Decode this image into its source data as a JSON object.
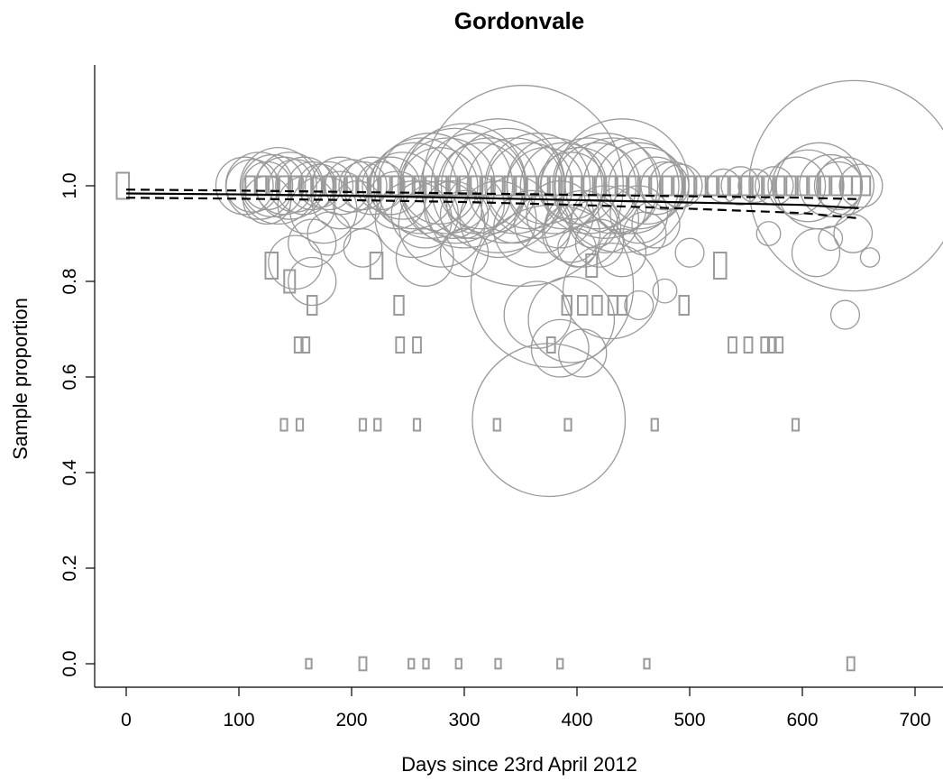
{
  "chart_data": {
    "type": "scatter",
    "title": "Gordonvale",
    "xlabel": "Days since 23rd April 2012",
    "ylabel": "Sample proportion",
    "xlim": [
      -15,
      720
    ],
    "ylim": [
      -0.05,
      1.25
    ],
    "x_ticks": [
      0,
      100,
      200,
      300,
      400,
      500,
      600,
      700
    ],
    "x_tick_labels": [
      "0",
      "100",
      "200",
      "300",
      "400",
      "500",
      "600",
      "700"
    ],
    "y_ticks": [
      0,
      0.2,
      0.4,
      0.6,
      0.8,
      1.0
    ],
    "y_tick_labels": [
      "0.0",
      "0.2",
      "0.4",
      "0.6",
      "0.8",
      "1.0"
    ],
    "grid": false,
    "legend": "none",
    "colors": {
      "points": "#9a9a9a",
      "trend": "#000000"
    },
    "bubbles": [
      {
        "x": 105,
        "y": 1.0,
        "r": 0.06
      },
      {
        "x": 112,
        "y": 1.0,
        "r": 0.055
      },
      {
        "x": 118,
        "y": 1.0,
        "r": 0.07
      },
      {
        "x": 125,
        "y": 1.0,
        "r": 0.05
      },
      {
        "x": 130,
        "y": 1.0,
        "r": 0.065
      },
      {
        "x": 135,
        "y": 1.0,
        "r": 0.08
      },
      {
        "x": 140,
        "y": 1.0,
        "r": 0.06
      },
      {
        "x": 145,
        "y": 1.0,
        "r": 0.07
      },
      {
        "x": 150,
        "y": 1.0,
        "r": 0.055
      },
      {
        "x": 158,
        "y": 1.0,
        "r": 0.06
      },
      {
        "x": 165,
        "y": 1.0,
        "r": 0.05
      },
      {
        "x": 172,
        "y": 1.0,
        "r": 0.045
      },
      {
        "x": 180,
        "y": 1.0,
        "r": 0.05
      },
      {
        "x": 190,
        "y": 1.0,
        "r": 0.06
      },
      {
        "x": 200,
        "y": 1.0,
        "r": 0.055
      },
      {
        "x": 210,
        "y": 1.0,
        "r": 0.05
      },
      {
        "x": 218,
        "y": 1.0,
        "r": 0.06
      },
      {
        "x": 226,
        "y": 1.0,
        "r": 0.05
      },
      {
        "x": 235,
        "y": 1.0,
        "r": 0.06
      },
      {
        "x": 245,
        "y": 1.0,
        "r": 0.07
      },
      {
        "x": 255,
        "y": 1.0,
        "r": 0.09
      },
      {
        "x": 262,
        "y": 1.0,
        "r": 0.1
      },
      {
        "x": 270,
        "y": 1.0,
        "r": 0.11
      },
      {
        "x": 278,
        "y": 1.0,
        "r": 0.08
      },
      {
        "x": 285,
        "y": 1.0,
        "r": 0.1
      },
      {
        "x": 292,
        "y": 1.0,
        "r": 0.12
      },
      {
        "x": 300,
        "y": 1.0,
        "r": 0.13
      },
      {
        "x": 308,
        "y": 1.0,
        "r": 0.11
      },
      {
        "x": 315,
        "y": 1.0,
        "r": 0.09
      },
      {
        "x": 322,
        "y": 1.0,
        "r": 0.1
      },
      {
        "x": 330,
        "y": 1.0,
        "r": 0.14
      },
      {
        "x": 338,
        "y": 1.0,
        "r": 0.12
      },
      {
        "x": 345,
        "y": 1.0,
        "r": 0.1
      },
      {
        "x": 352,
        "y": 1.0,
        "r": 0.21
      },
      {
        "x": 358,
        "y": 1.0,
        "r": 0.09
      },
      {
        "x": 365,
        "y": 1.0,
        "r": 0.11
      },
      {
        "x": 372,
        "y": 1.0,
        "r": 0.08
      },
      {
        "x": 380,
        "y": 1.0,
        "r": 0.1
      },
      {
        "x": 388,
        "y": 1.0,
        "r": 0.09
      },
      {
        "x": 395,
        "y": 1.0,
        "r": 0.07
      },
      {
        "x": 402,
        "y": 1.0,
        "r": 0.08
      },
      {
        "x": 410,
        "y": 1.0,
        "r": 0.1
      },
      {
        "x": 418,
        "y": 1.0,
        "r": 0.09
      },
      {
        "x": 425,
        "y": 1.0,
        "r": 0.11
      },
      {
        "x": 432,
        "y": 1.0,
        "r": 0.1
      },
      {
        "x": 440,
        "y": 1.0,
        "r": 0.14
      },
      {
        "x": 448,
        "y": 1.0,
        "r": 0.1
      },
      {
        "x": 455,
        "y": 1.0,
        "r": 0.09
      },
      {
        "x": 462,
        "y": 1.0,
        "r": 0.08
      },
      {
        "x": 470,
        "y": 1.0,
        "r": 0.06
      },
      {
        "x": 478,
        "y": 1.0,
        "r": 0.05
      },
      {
        "x": 485,
        "y": 1.0,
        "r": 0.05
      },
      {
        "x": 492,
        "y": 1.0,
        "r": 0.045
      },
      {
        "x": 530,
        "y": 1.0,
        "r": 0.035
      },
      {
        "x": 545,
        "y": 1.0,
        "r": 0.04
      },
      {
        "x": 558,
        "y": 1.0,
        "r": 0.035
      },
      {
        "x": 575,
        "y": 1.0,
        "r": 0.04
      },
      {
        "x": 595,
        "y": 1.0,
        "r": 0.06
      },
      {
        "x": 605,
        "y": 1.0,
        "r": 0.075
      },
      {
        "x": 615,
        "y": 1.0,
        "r": 0.09
      },
      {
        "x": 625,
        "y": 1.0,
        "r": 0.065
      },
      {
        "x": 632,
        "y": 1.0,
        "r": 0.05
      },
      {
        "x": 638,
        "y": 1.0,
        "r": 0.06
      },
      {
        "x": 646,
        "y": 1.0,
        "r": 0.22
      },
      {
        "x": 652,
        "y": 1.0,
        "r": 0.045
      },
      {
        "x": 125,
        "y": 0.97,
        "r": 0.05
      },
      {
        "x": 160,
        "y": 0.96,
        "r": 0.06
      },
      {
        "x": 175,
        "y": 0.95,
        "r": 0.07
      },
      {
        "x": 190,
        "y": 0.97,
        "r": 0.06
      },
      {
        "x": 205,
        "y": 0.96,
        "r": 0.05
      },
      {
        "x": 240,
        "y": 0.97,
        "r": 0.06
      },
      {
        "x": 255,
        "y": 0.93,
        "r": 0.08
      },
      {
        "x": 265,
        "y": 0.94,
        "r": 0.07
      },
      {
        "x": 280,
        "y": 0.92,
        "r": 0.09
      },
      {
        "x": 290,
        "y": 0.95,
        "r": 0.06
      },
      {
        "x": 300,
        "y": 0.94,
        "r": 0.05
      },
      {
        "x": 310,
        "y": 0.96,
        "r": 0.06
      },
      {
        "x": 330,
        "y": 0.93,
        "r": 0.08
      },
      {
        "x": 345,
        "y": 0.95,
        "r": 0.07
      },
      {
        "x": 360,
        "y": 0.91,
        "r": 0.08
      },
      {
        "x": 370,
        "y": 0.92,
        "r": 0.06
      },
      {
        "x": 385,
        "y": 0.94,
        "r": 0.07
      },
      {
        "x": 395,
        "y": 0.9,
        "r": 0.06
      },
      {
        "x": 405,
        "y": 0.91,
        "r": 0.08
      },
      {
        "x": 415,
        "y": 0.92,
        "r": 0.05
      },
      {
        "x": 425,
        "y": 0.93,
        "r": 0.07
      },
      {
        "x": 440,
        "y": 0.95,
        "r": 0.05
      },
      {
        "x": 455,
        "y": 0.94,
        "r": 0.06
      },
      {
        "x": 470,
        "y": 0.92,
        "r": 0.05
      },
      {
        "x": 165,
        "y": 0.88,
        "r": 0.05
      },
      {
        "x": 180,
        "y": 0.9,
        "r": 0.045
      },
      {
        "x": 210,
        "y": 0.87,
        "r": 0.04
      },
      {
        "x": 265,
        "y": 0.85,
        "r": 0.06
      },
      {
        "x": 300,
        "y": 0.86,
        "r": 0.05
      },
      {
        "x": 400,
        "y": 0.87,
        "r": 0.04
      },
      {
        "x": 420,
        "y": 0.88,
        "r": 0.05
      },
      {
        "x": 440,
        "y": 0.86,
        "r": 0.05
      },
      {
        "x": 460,
        "y": 0.9,
        "r": 0.045
      },
      {
        "x": 500,
        "y": 0.86,
        "r": 0.03
      },
      {
        "x": 570,
        "y": 0.9,
        "r": 0.025
      },
      {
        "x": 612,
        "y": 0.86,
        "r": 0.05
      },
      {
        "x": 625,
        "y": 0.89,
        "r": 0.025
      },
      {
        "x": 645,
        "y": 0.9,
        "r": 0.04
      },
      {
        "x": 660,
        "y": 0.85,
        "r": 0.02
      },
      {
        "x": 150,
        "y": 0.84,
        "r": 0.056
      },
      {
        "x": 165,
        "y": 0.8,
        "r": 0.05
      },
      {
        "x": 430,
        "y": 0.78,
        "r": 0.1
      },
      {
        "x": 378,
        "y": 0.79,
        "r": 0.17
      },
      {
        "x": 365,
        "y": 0.73,
        "r": 0.07
      },
      {
        "x": 395,
        "y": 0.72,
        "r": 0.09
      },
      {
        "x": 405,
        "y": 0.65,
        "r": 0.05
      },
      {
        "x": 385,
        "y": 0.66,
        "r": 0.06
      },
      {
        "x": 478,
        "y": 0.78,
        "r": 0.025
      },
      {
        "x": 455,
        "y": 0.75,
        "r": 0.03
      },
      {
        "x": 638,
        "y": 0.73,
        "r": 0.03
      },
      {
        "x": 375,
        "y": 0.51,
        "r": 0.16
      }
    ],
    "rect_markers": [
      {
        "x": -3,
        "y": 1.0,
        "size": 3
      },
      {
        "x": 110,
        "y": 1.0,
        "size": 2
      },
      {
        "x": 120,
        "y": 1.0,
        "size": 2
      },
      {
        "x": 130,
        "y": 1.0,
        "size": 2
      },
      {
        "x": 140,
        "y": 1.0,
        "size": 2
      },
      {
        "x": 150,
        "y": 1.0,
        "size": 2
      },
      {
        "x": 160,
        "y": 1.0,
        "size": 2
      },
      {
        "x": 170,
        "y": 1.0,
        "size": 2
      },
      {
        "x": 180,
        "y": 1.0,
        "size": 2
      },
      {
        "x": 190,
        "y": 1.0,
        "size": 2
      },
      {
        "x": 200,
        "y": 1.0,
        "size": 2
      },
      {
        "x": 210,
        "y": 1.0,
        "size": 2
      },
      {
        "x": 220,
        "y": 1.0,
        "size": 2
      },
      {
        "x": 230,
        "y": 1.0,
        "size": 2
      },
      {
        "x": 240,
        "y": 1.0,
        "size": 2
      },
      {
        "x": 250,
        "y": 1.0,
        "size": 2
      },
      {
        "x": 260,
        "y": 1.0,
        "size": 2
      },
      {
        "x": 270,
        "y": 1.0,
        "size": 2
      },
      {
        "x": 280,
        "y": 1.0,
        "size": 2
      },
      {
        "x": 290,
        "y": 1.0,
        "size": 2
      },
      {
        "x": 300,
        "y": 1.0,
        "size": 2
      },
      {
        "x": 310,
        "y": 1.0,
        "size": 2
      },
      {
        "x": 320,
        "y": 1.0,
        "size": 2
      },
      {
        "x": 330,
        "y": 1.0,
        "size": 2
      },
      {
        "x": 340,
        "y": 1.0,
        "size": 2
      },
      {
        "x": 350,
        "y": 1.0,
        "size": 2
      },
      {
        "x": 360,
        "y": 1.0,
        "size": 2
      },
      {
        "x": 370,
        "y": 1.0,
        "size": 2
      },
      {
        "x": 380,
        "y": 1.0,
        "size": 2
      },
      {
        "x": 390,
        "y": 1.0,
        "size": 2
      },
      {
        "x": 400,
        "y": 1.0,
        "size": 2
      },
      {
        "x": 410,
        "y": 1.0,
        "size": 2
      },
      {
        "x": 420,
        "y": 1.0,
        "size": 2
      },
      {
        "x": 430,
        "y": 1.0,
        "size": 2
      },
      {
        "x": 440,
        "y": 1.0,
        "size": 2
      },
      {
        "x": 450,
        "y": 1.0,
        "size": 2
      },
      {
        "x": 460,
        "y": 1.0,
        "size": 2
      },
      {
        "x": 470,
        "y": 1.0,
        "size": 2
      },
      {
        "x": 480,
        "y": 1.0,
        "size": 2
      },
      {
        "x": 490,
        "y": 1.0,
        "size": 2
      },
      {
        "x": 500,
        "y": 1.0,
        "size": 2
      },
      {
        "x": 510,
        "y": 1.0,
        "size": 2
      },
      {
        "x": 520,
        "y": 1.0,
        "size": 2
      },
      {
        "x": 530,
        "y": 1.0,
        "size": 2
      },
      {
        "x": 540,
        "y": 1.0,
        "size": 2
      },
      {
        "x": 550,
        "y": 1.0,
        "size": 2
      },
      {
        "x": 560,
        "y": 1.0,
        "size": 2
      },
      {
        "x": 570,
        "y": 1.0,
        "size": 2
      },
      {
        "x": 580,
        "y": 1.0,
        "size": 2
      },
      {
        "x": 590,
        "y": 1.0,
        "size": 2
      },
      {
        "x": 600,
        "y": 1.0,
        "size": 2
      },
      {
        "x": 610,
        "y": 1.0,
        "size": 2
      },
      {
        "x": 620,
        "y": 1.0,
        "size": 2
      },
      {
        "x": 630,
        "y": 1.0,
        "size": 2
      },
      {
        "x": 640,
        "y": 1.0,
        "size": 2
      },
      {
        "x": 648,
        "y": 1.0,
        "size": 2
      },
      {
        "x": 656,
        "y": 1.0,
        "size": 2
      },
      {
        "x": 129,
        "y": 0.833,
        "size": 3
      },
      {
        "x": 145,
        "y": 0.8,
        "size": 2.5
      },
      {
        "x": 222,
        "y": 0.833,
        "size": 3
      },
      {
        "x": 527,
        "y": 0.833,
        "size": 3
      },
      {
        "x": 413,
        "y": 0.833,
        "size": 2.5
      },
      {
        "x": 165,
        "y": 0.75,
        "size": 2
      },
      {
        "x": 242,
        "y": 0.75,
        "size": 2
      },
      {
        "x": 391,
        "y": 0.75,
        "size": 2
      },
      {
        "x": 405,
        "y": 0.75,
        "size": 2
      },
      {
        "x": 418,
        "y": 0.75,
        "size": 2
      },
      {
        "x": 432,
        "y": 0.75,
        "size": 2
      },
      {
        "x": 440,
        "y": 0.75,
        "size": 2
      },
      {
        "x": 495,
        "y": 0.75,
        "size": 2
      },
      {
        "x": 153,
        "y": 0.667,
        "size": 1.5
      },
      {
        "x": 159,
        "y": 0.667,
        "size": 1.5
      },
      {
        "x": 243,
        "y": 0.667,
        "size": 1.5
      },
      {
        "x": 258,
        "y": 0.667,
        "size": 1.5
      },
      {
        "x": 377,
        "y": 0.667,
        "size": 1.5
      },
      {
        "x": 538,
        "y": 0.667,
        "size": 1.5
      },
      {
        "x": 552,
        "y": 0.667,
        "size": 1.5
      },
      {
        "x": 567,
        "y": 0.667,
        "size": 1.5
      },
      {
        "x": 573,
        "y": 0.667,
        "size": 1.5
      },
      {
        "x": 579,
        "y": 0.667,
        "size": 1.5
      },
      {
        "x": 140,
        "y": 0.5,
        "size": 1
      },
      {
        "x": 154,
        "y": 0.5,
        "size": 1
      },
      {
        "x": 210,
        "y": 0.5,
        "size": 1
      },
      {
        "x": 223,
        "y": 0.5,
        "size": 1
      },
      {
        "x": 258,
        "y": 0.5,
        "size": 1
      },
      {
        "x": 329,
        "y": 0.5,
        "size": 1
      },
      {
        "x": 392,
        "y": 0.5,
        "size": 1
      },
      {
        "x": 469,
        "y": 0.5,
        "size": 1
      },
      {
        "x": 594,
        "y": 0.5,
        "size": 1
      },
      {
        "x": 162,
        "y": 0.0,
        "size": 0.7
      },
      {
        "x": 210,
        "y": 0.0,
        "size": 1.2
      },
      {
        "x": 253,
        "y": 0.0,
        "size": 0.7
      },
      {
        "x": 266,
        "y": 0.0,
        "size": 0.7
      },
      {
        "x": 295,
        "y": 0.0,
        "size": 0.7
      },
      {
        "x": 330,
        "y": 0.0,
        "size": 0.7
      },
      {
        "x": 385,
        "y": 0.0,
        "size": 0.7
      },
      {
        "x": 462,
        "y": 0.0,
        "size": 0.7
      },
      {
        "x": 643,
        "y": 0.0,
        "size": 1.2
      }
    ],
    "trend_line": {
      "x": [
        0,
        100,
        200,
        300,
        400,
        500,
        600,
        650
      ],
      "y": [
        0.984,
        0.982,
        0.979,
        0.975,
        0.97,
        0.965,
        0.96,
        0.953
      ]
    },
    "ci_upper": {
      "x": [
        0,
        100,
        200,
        300,
        400,
        500,
        600,
        650
      ],
      "y": [
        0.992,
        0.99,
        0.987,
        0.984,
        0.981,
        0.978,
        0.975,
        0.972
      ]
    },
    "ci_lower": {
      "x": [
        0,
        100,
        200,
        300,
        400,
        500,
        600,
        650
      ],
      "y": [
        0.975,
        0.973,
        0.97,
        0.966,
        0.96,
        0.952,
        0.943,
        0.932
      ]
    }
  }
}
